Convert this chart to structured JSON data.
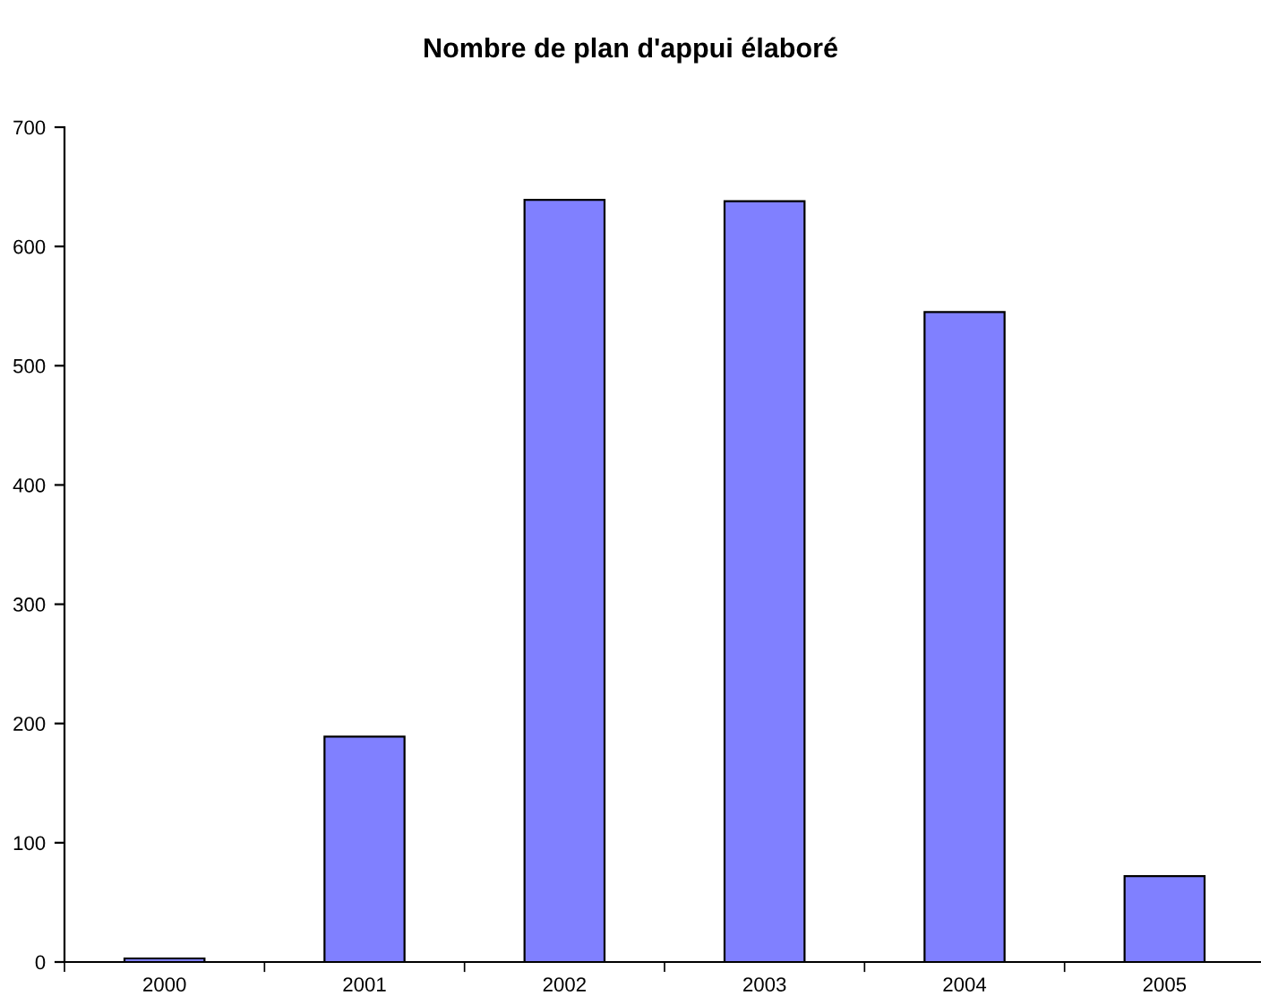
{
  "chart_data": {
    "type": "bar",
    "title": "Nombre de plan d'appui élaboré",
    "categories": [
      "2000",
      "2001",
      "2002",
      "2003",
      "2004",
      "2005"
    ],
    "values": [
      3,
      189,
      639,
      638,
      545,
      72
    ],
    "color": "#8080ff",
    "ylim": [
      0,
      700
    ],
    "yticks": [
      0,
      100,
      200,
      300,
      400,
      500,
      600,
      700
    ],
    "grid": false,
    "legend": false
  }
}
